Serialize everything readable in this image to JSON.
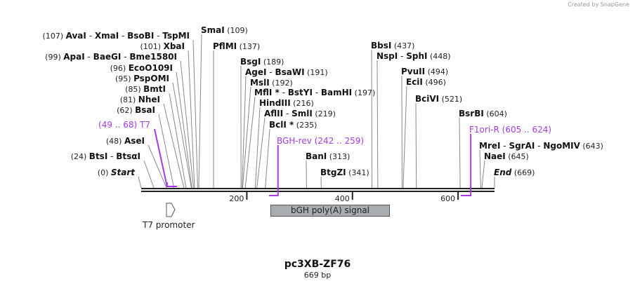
{
  "credit": "Created by SnapGene",
  "plasmid": {
    "name": "pc3XB-ZF76",
    "length_label": "669 bp",
    "length": 669
  },
  "colors": {
    "primer": "#a43be6",
    "line": "#777777",
    "feature_fill": "#a9adb2"
  },
  "ticks": [
    {
      "value": 200,
      "label": "200"
    },
    {
      "value": 400,
      "label": "400"
    },
    {
      "value": 600,
      "label": "600"
    }
  ],
  "enzymes": [
    {
      "names": [
        "AvaI",
        "XmaI",
        "BsoBI",
        "TspMI"
      ],
      "site": 107,
      "site_label": "(107)"
    },
    {
      "names": [
        "XbaI"
      ],
      "site": 101,
      "site_label": "(101)"
    },
    {
      "names": [
        "ApaI",
        "BaeGI",
        "Bme1580I"
      ],
      "site": 99,
      "site_label": "(99)"
    },
    {
      "names": [
        "EcoO109I"
      ],
      "site": 96,
      "site_label": "(96)"
    },
    {
      "names": [
        "PspOMI"
      ],
      "site": 95,
      "site_label": "(95)"
    },
    {
      "names": [
        "BmtI"
      ],
      "site": 85,
      "site_label": "(85)"
    },
    {
      "names": [
        "NheI"
      ],
      "site": 81,
      "site_label": "(81)"
    },
    {
      "names": [
        "BsaI"
      ],
      "site": 62,
      "site_label": "(62)"
    },
    {
      "names": [
        "AseI"
      ],
      "site": 48,
      "site_label": "(48)"
    },
    {
      "names": [
        "BtsI",
        "BtsαI"
      ],
      "site": 24,
      "site_label": "(24)"
    },
    {
      "names": [
        "Start"
      ],
      "site": 0,
      "site_label": "(0)",
      "italic": true
    },
    {
      "names": [
        "SmaI"
      ],
      "site": 109,
      "site_label": "(109)"
    },
    {
      "names": [
        "PflMI"
      ],
      "site": 137,
      "site_label": "(137)"
    },
    {
      "names": [
        "BsgI"
      ],
      "site": 189,
      "site_label": "(189)"
    },
    {
      "names": [
        "AgeI",
        "BsaWI"
      ],
      "site": 191,
      "site_label": "(191)"
    },
    {
      "names": [
        "MslI"
      ],
      "site": 192,
      "site_label": "(192)"
    },
    {
      "names": [
        "MflI *",
        "BstYI",
        "BamHI"
      ],
      "site": 197,
      "site_label": "(197)"
    },
    {
      "names": [
        "HindIII"
      ],
      "site": 216,
      "site_label": "(216)"
    },
    {
      "names": [
        "AflII",
        "SmlI"
      ],
      "site": 219,
      "site_label": "(219)"
    },
    {
      "names": [
        "BclI *"
      ],
      "site": 235,
      "site_label": "(235)"
    },
    {
      "names": [
        "BanI"
      ],
      "site": 313,
      "site_label": "(313)"
    },
    {
      "names": [
        "BtgZI"
      ],
      "site": 341,
      "site_label": "(341)"
    },
    {
      "names": [
        "BbsI"
      ],
      "site": 437,
      "site_label": "(437)"
    },
    {
      "names": [
        "NspI",
        "SphI"
      ],
      "site": 448,
      "site_label": "(448)"
    },
    {
      "names": [
        "PvuII"
      ],
      "site": 494,
      "site_label": "(494)"
    },
    {
      "names": [
        "EciI"
      ],
      "site": 496,
      "site_label": "(496)"
    },
    {
      "names": [
        "BciVI"
      ],
      "site": 521,
      "site_label": "(521)"
    },
    {
      "names": [
        "BsrBI"
      ],
      "site": 604,
      "site_label": "(604)"
    },
    {
      "names": [
        "MreI",
        "SgrAI",
        "NgoMIV"
      ],
      "site": 643,
      "site_label": "(643)"
    },
    {
      "names": [
        "NaeI"
      ],
      "site": 645,
      "site_label": "(645)"
    },
    {
      "names": [
        "End"
      ],
      "site": 669,
      "site_label": "(669)",
      "italic": true
    }
  ],
  "primers": [
    {
      "name": "T7",
      "range_label": "(49 .. 68)",
      "start": 49,
      "end": 68,
      "strand": "forward"
    },
    {
      "name": "BGH-rev",
      "range_label": "(242 .. 259)",
      "start": 242,
      "end": 259,
      "strand": "reverse"
    },
    {
      "name": "F1ori-R",
      "range_label": "(605 .. 624)",
      "start": 605,
      "end": 624,
      "strand": "reverse"
    }
  ],
  "features": [
    {
      "name": "T7 promoter",
      "start": 49,
      "end": 67,
      "type": "promoter"
    },
    {
      "name": "bGH poly(A) signal",
      "start": 245,
      "end": 469,
      "type": "polyA_signal"
    }
  ]
}
